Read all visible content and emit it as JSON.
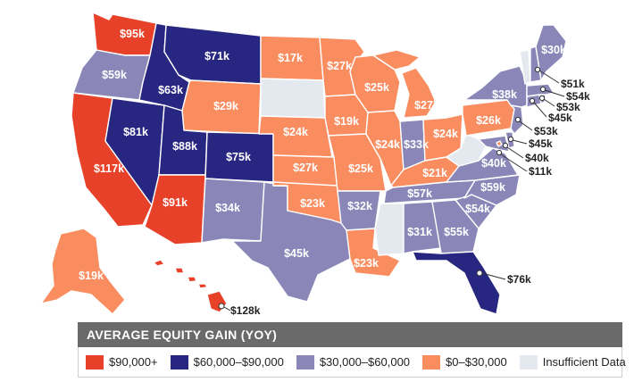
{
  "colors": {
    "c90plus": "#e8412a",
    "c60_90": "#272680",
    "c30_60": "#8a86b8",
    "c0_30": "#f98d60",
    "insufficient": "#e3e9ef"
  },
  "legend": {
    "title": "AVERAGE EQUITY GAIN (YOY)",
    "items": [
      {
        "label": "$90,000+",
        "color": "#e8412a"
      },
      {
        "label": "$60,000–$90,000",
        "color": "#272680"
      },
      {
        "label": "$30,000–$60,000",
        "color": "#8a86b8"
      },
      {
        "label": "$0–$30,000",
        "color": "#f98d60"
      },
      {
        "label": "Insufficient Data",
        "color": "#e3e9ef"
      }
    ]
  },
  "states": {
    "WA": {
      "value": "$95k",
      "color": "#e8412a"
    },
    "OR": {
      "value": "$59k",
      "color": "#8a86b8"
    },
    "CA": {
      "value": "$117k",
      "color": "#e8412a"
    },
    "NV": {
      "value": "$81k",
      "color": "#272680"
    },
    "ID": {
      "value": "$63k",
      "color": "#272680"
    },
    "MT": {
      "value": "$71k",
      "color": "#272680"
    },
    "WY": {
      "value": "$29k",
      "color": "#f98d60"
    },
    "UT": {
      "value": "$88k",
      "color": "#272680"
    },
    "CO": {
      "value": "$75k",
      "color": "#272680"
    },
    "AZ": {
      "value": "$91k",
      "color": "#e8412a"
    },
    "NM": {
      "value": "$34k",
      "color": "#8a86b8"
    },
    "TX": {
      "value": "$45k",
      "color": "#8a86b8"
    },
    "ND": {
      "value": "$17k",
      "color": "#f98d60"
    },
    "SD": {
      "value": "",
      "color": "#e3e9ef"
    },
    "NE": {
      "value": "$24k",
      "color": "#f98d60"
    },
    "KS": {
      "value": "$27k",
      "color": "#f98d60"
    },
    "OK": {
      "value": "$23k",
      "color": "#f98d60"
    },
    "MN": {
      "value": "$27k",
      "color": "#f98d60"
    },
    "IA": {
      "value": "$19k",
      "color": "#f98d60"
    },
    "MO": {
      "value": "$25k",
      "color": "#f98d60"
    },
    "AR": {
      "value": "$32k",
      "color": "#8a86b8"
    },
    "LA": {
      "value": "$23k",
      "color": "#f98d60"
    },
    "WI": {
      "value": "$25k",
      "color": "#f98d60"
    },
    "IL": {
      "value": "$24k",
      "color": "#f98d60"
    },
    "MS": {
      "value": "",
      "color": "#e3e9ef"
    },
    "MI": {
      "value": "$27k",
      "color": "#f98d60"
    },
    "IN": {
      "value": "$33k",
      "color": "#8a86b8"
    },
    "OH": {
      "value": "$24k",
      "color": "#f98d60"
    },
    "KY": {
      "value": "$21k",
      "color": "#f98d60"
    },
    "TN": {
      "value": "$57k",
      "color": "#8a86b8"
    },
    "AL": {
      "value": "$31k",
      "color": "#8a86b8"
    },
    "GA": {
      "value": "$55k",
      "color": "#8a86b8"
    },
    "FL": {
      "value": "$76k",
      "color": "#272680"
    },
    "SC": {
      "value": "$54k",
      "color": "#8a86b8"
    },
    "NC": {
      "value": "$59k",
      "color": "#8a86b8"
    },
    "VA": {
      "value": "$40k",
      "color": "#8a86b8"
    },
    "WV": {
      "value": "",
      "color": "#e3e9ef"
    },
    "PA": {
      "value": "$26k",
      "color": "#f98d60"
    },
    "NY": {
      "value": "$38k",
      "color": "#8a86b8"
    },
    "VT": {
      "value": "",
      "color": "#e3e9ef"
    },
    "NH": {
      "value": "$51k",
      "color": "#8a86b8"
    },
    "ME": {
      "value": "$30k",
      "color": "#8a86b8"
    },
    "MA": {
      "value": "$54k",
      "color": "#8a86b8"
    },
    "RI": {
      "value": "$53k",
      "color": "#8a86b8"
    },
    "CT": {
      "value": "$45k",
      "color": "#8a86b8"
    },
    "NJ": {
      "value": "$53k",
      "color": "#8a86b8"
    },
    "DE": {
      "value": "$45k",
      "color": "#8a86b8"
    },
    "MD": {
      "value": "$40k",
      "color": "#8a86b8"
    },
    "DC": {
      "value": "$11k",
      "color": "#f98d60"
    },
    "AK": {
      "value": "$19k",
      "color": "#f98d60"
    },
    "HI": {
      "value": "$128k",
      "color": "#e8412a"
    }
  }
}
